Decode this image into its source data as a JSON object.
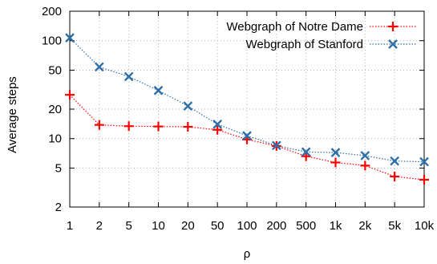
{
  "chart_data": {
    "type": "line",
    "xlabel": "ρ",
    "ylabel": "Average steps",
    "x_scale": "categorical",
    "y_scale": "log",
    "ylim": [
      2,
      200
    ],
    "grid": true,
    "legend_position": "top-right",
    "categories": [
      "1",
      "2",
      "5",
      "10",
      "20",
      "50",
      "100",
      "200",
      "500",
      "1k",
      "2k",
      "5k",
      "10k"
    ],
    "y_ticks": [
      {
        "value": 2,
        "label": "2"
      },
      {
        "value": 5,
        "label": "5"
      },
      {
        "value": 10,
        "label": "10"
      },
      {
        "value": 20,
        "label": "20"
      },
      {
        "value": 50,
        "label": "50"
      },
      {
        "value": 100,
        "label": "100"
      },
      {
        "value": 200,
        "label": "200"
      }
    ],
    "series": [
      {
        "name": "Webgraph of Notre Dame",
        "color": "#ff0000",
        "marker": "plus",
        "values": [
          28,
          13.8,
          13.4,
          13.3,
          13.2,
          12.3,
          9.8,
          8.4,
          6.6,
          5.7,
          5.3,
          4.1,
          3.8
        ]
      },
      {
        "name": "Webgraph of Stanford",
        "color": "#2e6fa7",
        "marker": "cross",
        "values": [
          107,
          54,
          43,
          31,
          21.5,
          14,
          10.7,
          8.5,
          7.3,
          7.2,
          6.7,
          5.9,
          5.8
        ]
      }
    ]
  }
}
